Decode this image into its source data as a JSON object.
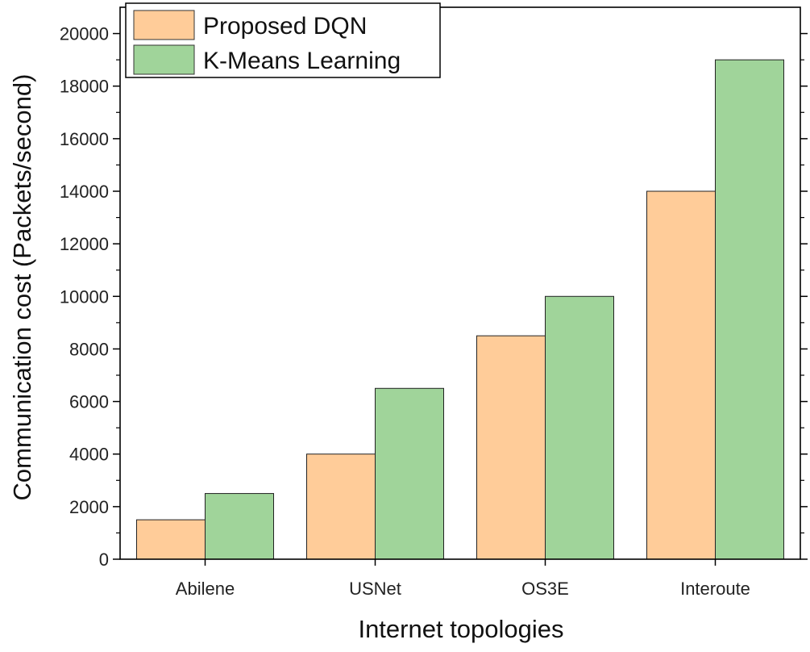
{
  "chart_data": {
    "type": "bar",
    "title": "",
    "xlabel": "Internet topologies",
    "ylabel": "Communication cost (Packets/second)",
    "categories": [
      "Abilene",
      "USNet",
      "OS3E",
      "Interoute"
    ],
    "series": [
      {
        "name": "Proposed DQN",
        "values": [
          1500,
          4000,
          8500,
          14000
        ],
        "color": "#FFCC99"
      },
      {
        "name": "K-Means Learning",
        "values": [
          2500,
          6500,
          10000,
          19000
        ],
        "color": "#A0D49A"
      }
    ],
    "ylim": [
      0,
      21000
    ],
    "yticks": [
      0,
      2000,
      4000,
      6000,
      8000,
      10000,
      12000,
      14000,
      16000,
      18000,
      20000
    ],
    "grid": false,
    "legend_position": "top-left"
  }
}
